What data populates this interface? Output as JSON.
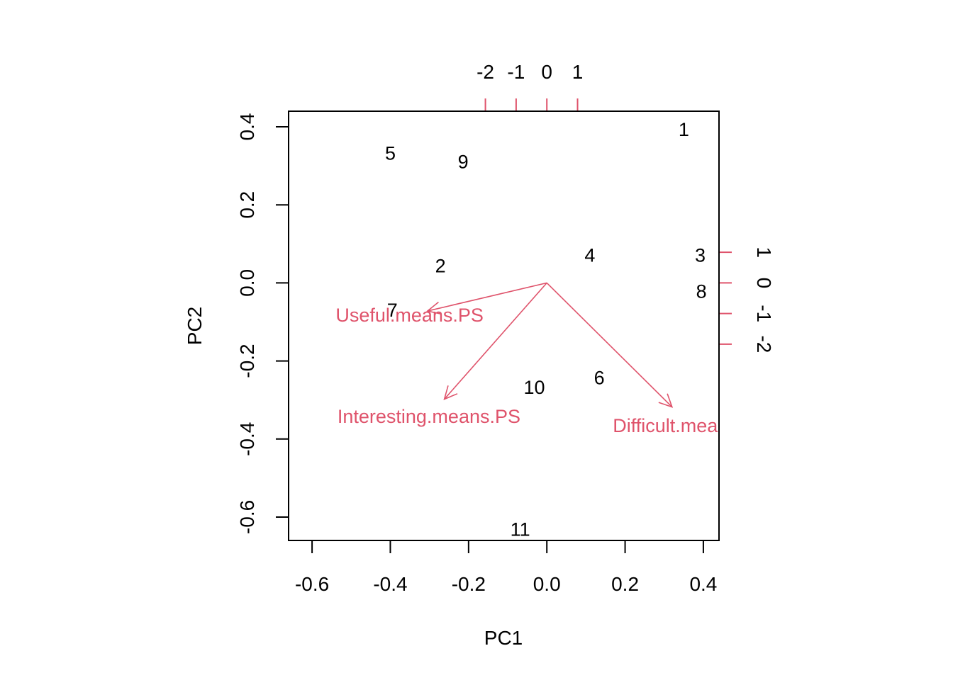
{
  "chart_data": {
    "type": "biplot",
    "xlabel": "PC1",
    "ylabel": "PC2",
    "xlim": [
      -0.66,
      0.44
    ],
    "ylim": [
      -0.66,
      0.44
    ],
    "x_ticks": [
      "-0.6",
      "-0.4",
      "-0.2",
      "0.0",
      "0.2",
      "0.4"
    ],
    "y_ticks": [
      "-0.6",
      "-0.4",
      "-0.2",
      "0.0",
      "0.2",
      "0.4"
    ],
    "top_ticks": [
      "-2",
      "-1",
      "0",
      "1"
    ],
    "right_ticks": [
      "-2",
      "-1",
      "0",
      "1"
    ],
    "var_color": "#DF536B",
    "points": [
      {
        "label": "1",
        "x": 0.35,
        "y": 0.393
      },
      {
        "label": "2",
        "x": -0.272,
        "y": 0.043
      },
      {
        "label": "3",
        "x": 0.392,
        "y": 0.071
      },
      {
        "label": "4",
        "x": 0.11,
        "y": 0.071
      },
      {
        "label": "5",
        "x": -0.4,
        "y": 0.332
      },
      {
        "label": "6",
        "x": 0.134,
        "y": -0.243
      },
      {
        "label": "7",
        "x": -0.395,
        "y": -0.07
      },
      {
        "label": "8",
        "x": 0.395,
        "y": -0.022
      },
      {
        "label": "9",
        "x": -0.214,
        "y": 0.31
      },
      {
        "label": "10",
        "x": -0.032,
        "y": -0.268
      },
      {
        "label": "11",
        "x": -0.068,
        "y": -0.632
      }
    ],
    "variables": [
      {
        "label": "Useful.means.PS",
        "x": -0.305,
        "y": -0.072
      },
      {
        "label": "Interesting.means.PS",
        "x": -0.262,
        "y": -0.298
      },
      {
        "label": "Difficult.means.PS",
        "x": 0.32,
        "y": -0.318
      }
    ]
  }
}
